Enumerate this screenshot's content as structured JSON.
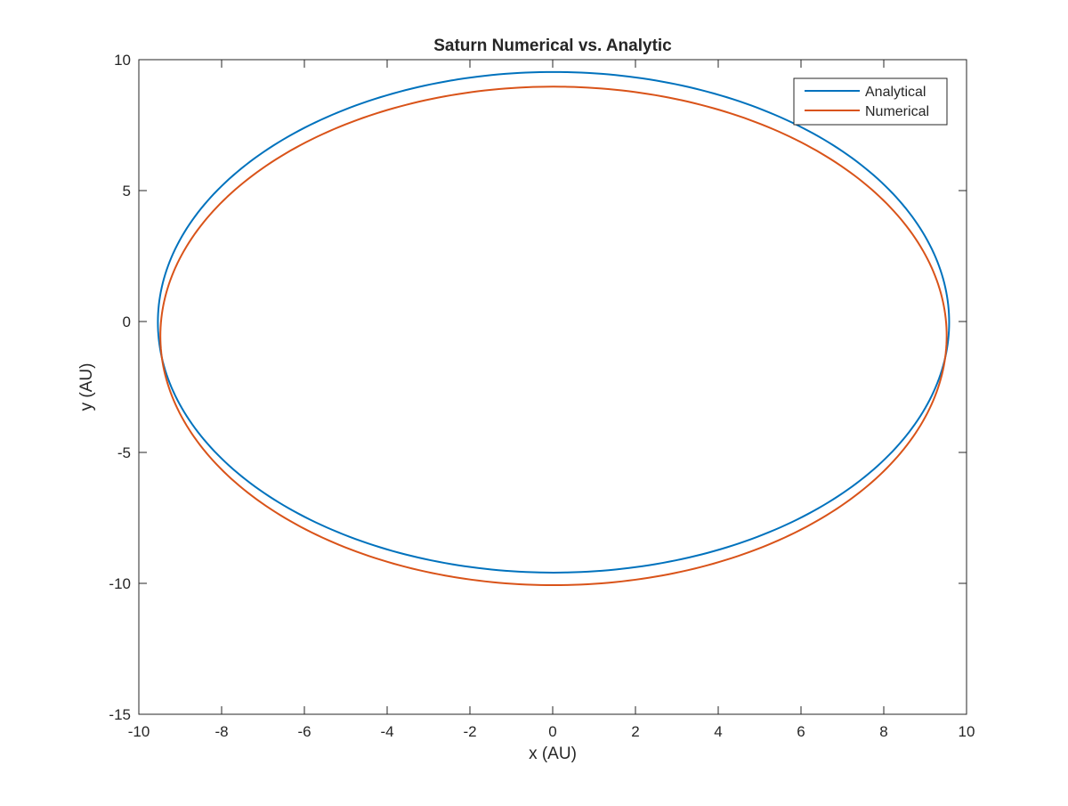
{
  "chart_data": {
    "type": "line",
    "title": "Saturn Numerical vs. Analytic",
    "xlabel": "x (AU)",
    "ylabel": "y (AU)",
    "xlim": [
      -10,
      10
    ],
    "ylim": [
      -15,
      10
    ],
    "xticks": [
      -10,
      -8,
      -6,
      -4,
      -2,
      0,
      2,
      4,
      6,
      8,
      10
    ],
    "yticks": [
      -15,
      -10,
      -5,
      0,
      5,
      10
    ],
    "grid": false,
    "legend_position": "top-right",
    "series": [
      {
        "name": "Analytical",
        "color": "#0072BD",
        "shape": "ellipse",
        "center": [
          0.02,
          -0.03
        ],
        "semi_axis_x": 9.56,
        "semi_axis_y": 9.56
      },
      {
        "name": "Numerical",
        "color": "#D95319",
        "shape": "ellipse",
        "center": [
          0.02,
          -0.55
        ],
        "semi_axis_x": 9.5,
        "semi_axis_y": 9.52
      }
    ]
  }
}
